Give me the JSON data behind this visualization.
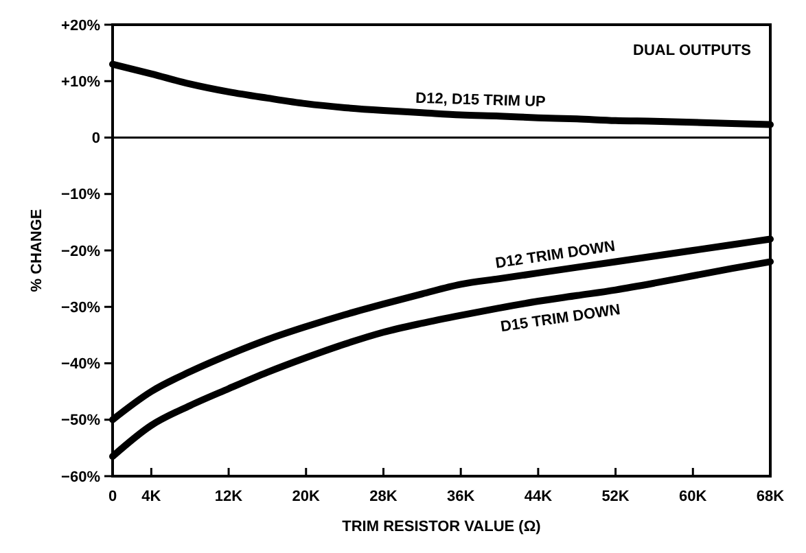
{
  "chart_data": {
    "type": "line",
    "xlabel": "TRIM RESISTOR VALUE (Ω)",
    "ylabel": "% CHANGE",
    "annotations": [
      "DUAL OUTPUTS"
    ],
    "x": [
      0,
      4,
      8,
      12,
      16,
      20,
      24,
      28,
      32,
      36,
      40,
      44,
      48,
      52,
      56,
      60,
      64,
      68
    ],
    "series": [
      {
        "name": "D12, D15 TRIM UP",
        "color": "#000000",
        "values": [
          13,
          11.3,
          9.5,
          8.1,
          7,
          6,
          5.3,
          4.8,
          4.4,
          4,
          3.8,
          3.5,
          3.3,
          3,
          2.9,
          2.7,
          2.5,
          2.3
        ]
      },
      {
        "name": "D12 TRIM DOWN",
        "color": "#000000",
        "values": [
          -50,
          -45,
          -41.5,
          -38.5,
          -35.8,
          -33.5,
          -31.4,
          -29.5,
          -27.7,
          -26,
          -25,
          -24,
          -23,
          -22,
          -21,
          -20,
          -19,
          -18
        ]
      },
      {
        "name": "D15 TRIM DOWN",
        "color": "#000000",
        "values": [
          -56.5,
          -51,
          -47.5,
          -44.5,
          -41.6,
          -39,
          -36.6,
          -34.5,
          -32.9,
          -31.5,
          -30.2,
          -29,
          -28,
          -27,
          -25.8,
          -24.5,
          -23.2,
          -22
        ]
      }
    ],
    "xlim": [
      0,
      68
    ],
    "ylim": [
      -60,
      20
    ],
    "xticks": [
      {
        "value": 0,
        "label": "0"
      },
      {
        "value": 4,
        "label": "4K"
      },
      {
        "value": 12,
        "label": "12K"
      },
      {
        "value": 20,
        "label": "20K"
      },
      {
        "value": 28,
        "label": "28K"
      },
      {
        "value": 36,
        "label": "36K"
      },
      {
        "value": 44,
        "label": "44K"
      },
      {
        "value": 52,
        "label": "52K"
      },
      {
        "value": 60,
        "label": "60K"
      },
      {
        "value": 68,
        "label": "68K"
      }
    ],
    "yticks": [
      {
        "value": 20,
        "label": "+20%"
      },
      {
        "value": 10,
        "label": "+10%"
      },
      {
        "value": 0,
        "label": "0"
      },
      {
        "value": -10,
        "label": "−10%"
      },
      {
        "value": -20,
        "label": "−20%"
      },
      {
        "value": -30,
        "label": "−30%"
      },
      {
        "value": -40,
        "label": "−40%"
      },
      {
        "value": -50,
        "label": "−50%"
      },
      {
        "value": -60,
        "label": "−60%"
      }
    ],
    "ref_lines": [
      {
        "axis": "y",
        "value": 0,
        "color": "#000000"
      }
    ],
    "grid": false,
    "marker": "none",
    "line_style": "solid"
  }
}
